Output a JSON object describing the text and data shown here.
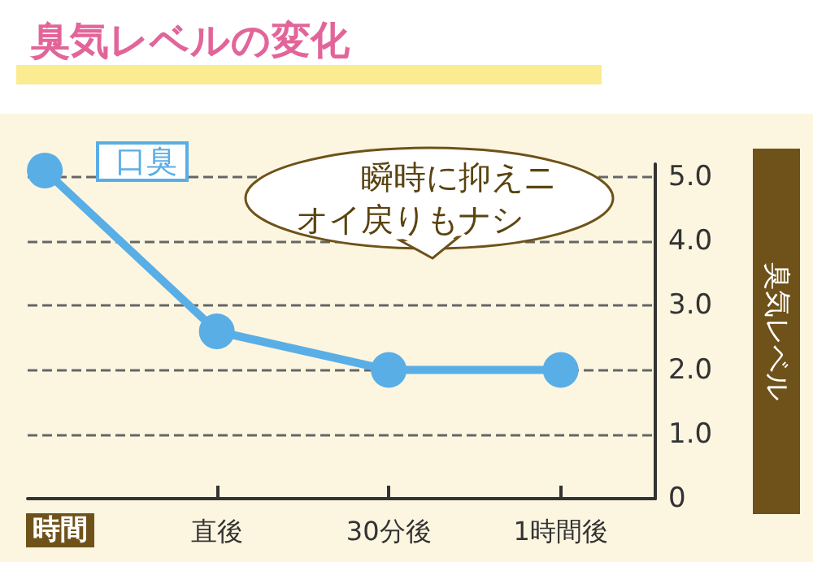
{
  "chart_data": {
    "type": "line",
    "title": "臭気レベルの変化",
    "xlabel": "時間",
    "ylabel": "臭気レベル",
    "categories": [
      null,
      "直後",
      "30分後",
      "1時間後"
    ],
    "series": [
      {
        "name": "口臭",
        "color": "#5aaee6",
        "values": [
          5.1,
          2.6,
          2.0,
          2.0
        ]
      }
    ],
    "ylim": [
      0,
      5.2
    ],
    "yticks": [
      {
        "value": 0,
        "label": "0"
      },
      {
        "value": 1,
        "label": "1.0"
      },
      {
        "value": 2,
        "label": "2.0"
      },
      {
        "value": 3,
        "label": "3.0"
      },
      {
        "value": 4,
        "label": "4.0"
      },
      {
        "value": 5,
        "label": "5.0"
      }
    ],
    "grid": "y",
    "legend": "top left",
    "marker": "circle",
    "line_style": "solid",
    "annotations": [
      "瞬時に抑えニオイ戻りもナシ"
    ]
  }
}
